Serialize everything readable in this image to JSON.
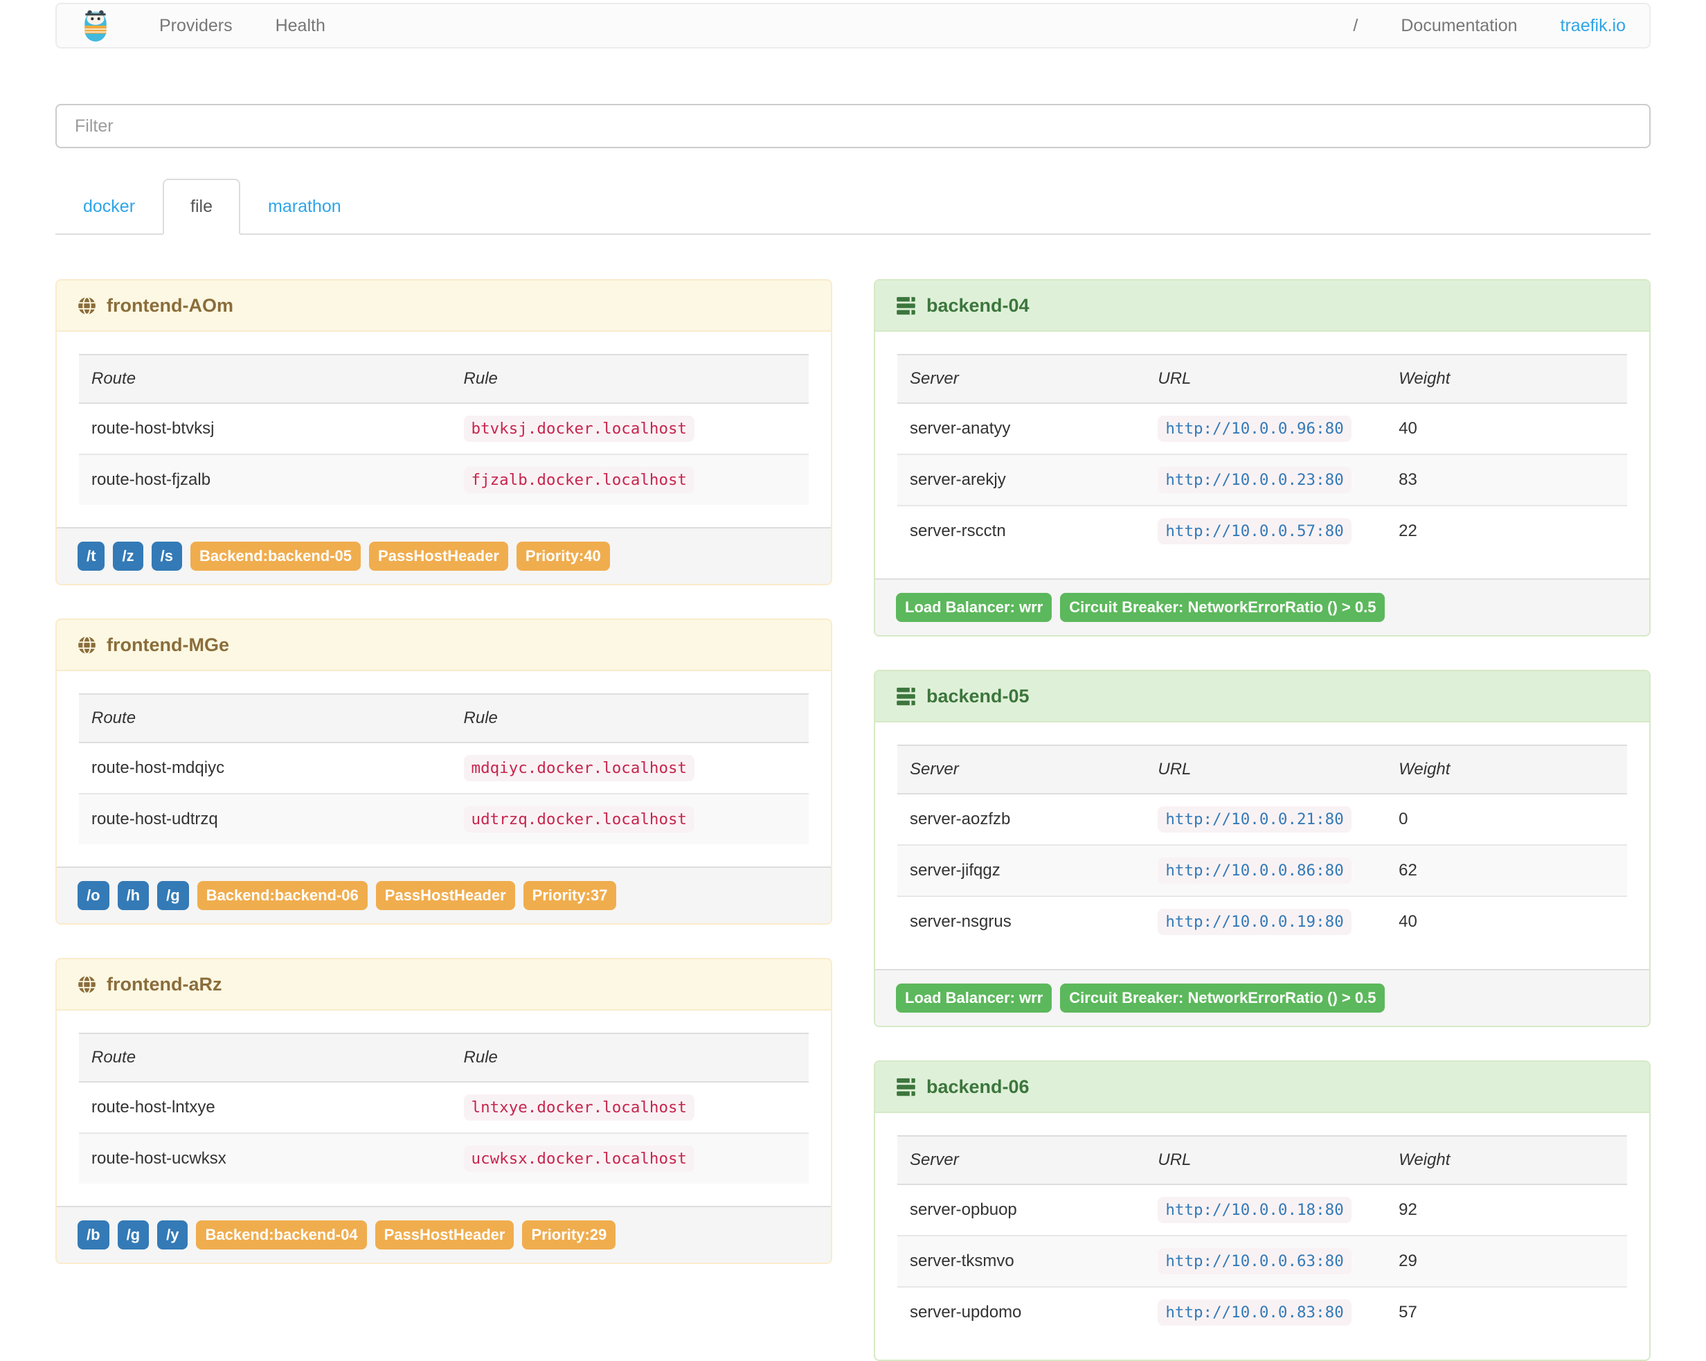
{
  "navbar": {
    "providers_label": "Providers",
    "health_label": "Health",
    "separator": "/",
    "documentation_label": "Documentation",
    "site_label": "traefik.io"
  },
  "filter": {
    "placeholder": "Filter",
    "value": ""
  },
  "tabs": [
    {
      "label": "docker",
      "active": false
    },
    {
      "label": "file",
      "active": true
    },
    {
      "label": "marathon",
      "active": false
    }
  ],
  "tables": {
    "frontend_headers": [
      "Route",
      "Rule"
    ],
    "backend_headers": [
      "Server",
      "URL",
      "Weight"
    ]
  },
  "frontends": [
    {
      "id": "frontend-AOm",
      "routes": [
        {
          "route": "route-host-btvksj",
          "rule": "btvksj.docker.localhost"
        },
        {
          "route": "route-host-fjzalb",
          "rule": "fjzalb.docker.localhost"
        }
      ],
      "path_badges": [
        "/t",
        "/z",
        "/s"
      ],
      "backend_badge": "Backend:backend-05",
      "pass_host_header_badge": "PassHostHeader",
      "priority_badge": "Priority:40"
    },
    {
      "id": "frontend-MGe",
      "routes": [
        {
          "route": "route-host-mdqiyc",
          "rule": "mdqiyc.docker.localhost"
        },
        {
          "route": "route-host-udtrzq",
          "rule": "udtrzq.docker.localhost"
        }
      ],
      "path_badges": [
        "/o",
        "/h",
        "/g"
      ],
      "backend_badge": "Backend:backend-06",
      "pass_host_header_badge": "PassHostHeader",
      "priority_badge": "Priority:37"
    },
    {
      "id": "frontend-aRz",
      "routes": [
        {
          "route": "route-host-lntxye",
          "rule": "lntxye.docker.localhost"
        },
        {
          "route": "route-host-ucwksx",
          "rule": "ucwksx.docker.localhost"
        }
      ],
      "path_badges": [
        "/b",
        "/g",
        "/y"
      ],
      "backend_badge": "Backend:backend-04",
      "pass_host_header_badge": "PassHostHeader",
      "priority_badge": "Priority:29"
    }
  ],
  "backends": [
    {
      "id": "backend-04",
      "servers": [
        {
          "server": "server-anatyy",
          "url": "http://10.0.0.96:80",
          "weight": "40"
        },
        {
          "server": "server-arekjy",
          "url": "http://10.0.0.23:80",
          "weight": "83"
        },
        {
          "server": "server-rscctn",
          "url": "http://10.0.0.57:80",
          "weight": "22"
        }
      ],
      "footer_badges": [
        "Load Balancer: wrr",
        "Circuit Breaker: NetworkErrorRatio () > 0.5"
      ]
    },
    {
      "id": "backend-05",
      "servers": [
        {
          "server": "server-aozfzb",
          "url": "http://10.0.0.21:80",
          "weight": "0"
        },
        {
          "server": "server-jifqgz",
          "url": "http://10.0.0.86:80",
          "weight": "62"
        },
        {
          "server": "server-nsgrus",
          "url": "http://10.0.0.19:80",
          "weight": "40"
        }
      ],
      "footer_badges": [
        "Load Balancer: wrr",
        "Circuit Breaker: NetworkErrorRatio () > 0.5"
      ]
    },
    {
      "id": "backend-06",
      "servers": [
        {
          "server": "server-opbuop",
          "url": "http://10.0.0.18:80",
          "weight": "92"
        },
        {
          "server": "server-tksmvo",
          "url": "http://10.0.0.63:80",
          "weight": "29"
        },
        {
          "server": "server-updomo",
          "url": "http://10.0.0.83:80",
          "weight": "57"
        }
      ],
      "footer_badges": []
    }
  ],
  "colors": {
    "link_blue": "#2fa4e7",
    "badge_blue": "#337ab7",
    "badge_orange": "#f0ad4e",
    "badge_green": "#5cb85c",
    "frontend_header_bg": "#fcf8e3",
    "frontend_text": "#8a6d3b",
    "backend_header_bg": "#dff0d8",
    "backend_text": "#3c763d",
    "code_bg": "#f9f2f4",
    "code_red": "#c7254e",
    "code_url_blue": "#337ab7"
  }
}
